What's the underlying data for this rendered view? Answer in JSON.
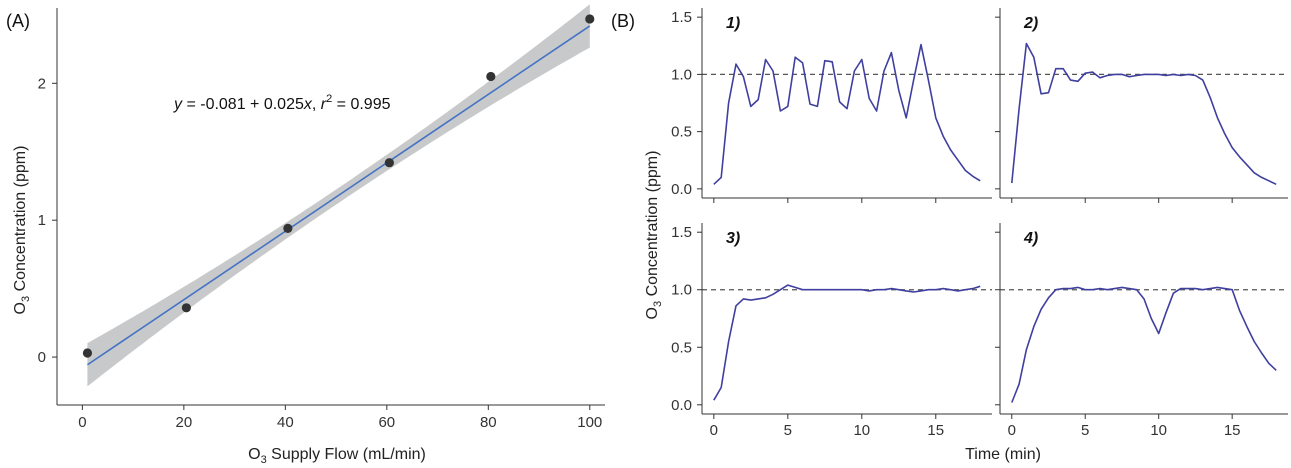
{
  "figure": {
    "panel_a_tag": "(A)",
    "panel_b_tag": "(B)"
  },
  "chart_data": [
    {
      "type": "scatter",
      "panel": "A",
      "xlabel": "O3 Supply Flow (mL/min)",
      "ylabel": "O3 Concentration (ppm)",
      "xlim": [
        -5,
        103
      ],
      "ylim": [
        -0.35,
        2.55
      ],
      "xticks": [
        0,
        20,
        40,
        60,
        80,
        100
      ],
      "yticks": [
        0,
        1,
        2
      ],
      "x": [
        1,
        20.5,
        40.5,
        60.5,
        80.5,
        100
      ],
      "y": [
        0.03,
        0.36,
        0.94,
        1.42,
        2.05,
        2.47
      ],
      "fit": {
        "intercept": -0.081,
        "slope": 0.025,
        "x_range": [
          1,
          100
        ],
        "annotation": {
          "y_var": "y",
          "eq_text": " = -0.081 + 0.025",
          "x_var": "x",
          "sep": ", ",
          "r_var": "r",
          "r_sup": "2",
          "r_text": " = 0.995"
        }
      },
      "colors": {
        "points": "#333333",
        "fit_line": "#4472c4",
        "confidence_band": "#c8c9cb"
      },
      "grid": false
    },
    {
      "type": "line",
      "panel": "B",
      "xlabel": "Time (min)",
      "ylabel": "O3 Concentration (ppm)",
      "xlim": [
        -0.8,
        18.8
      ],
      "ylim": [
        -0.08,
        1.58
      ],
      "xticks": [
        0,
        5,
        10,
        15
      ],
      "yticks": [
        0.0,
        0.5,
        1.0,
        1.5
      ],
      "reference_line": 1.0,
      "colors": {
        "line": "#3f3fa0",
        "reference": "#555555"
      },
      "grid": false,
      "facets": [
        {
          "label": "1)",
          "x": [
            0,
            0.5,
            1,
            1.5,
            2,
            2.5,
            3,
            3.5,
            4,
            4.5,
            5,
            5.5,
            6,
            6.5,
            7,
            7.5,
            8,
            8.5,
            9,
            9.5,
            10,
            10.5,
            11,
            11.5,
            12,
            12.5,
            13,
            13.5,
            14,
            14.5,
            15,
            15.5,
            16,
            16.5,
            17,
            17.5,
            18
          ],
          "y": [
            0.04,
            0.1,
            0.75,
            1.09,
            0.98,
            0.72,
            0.78,
            1.13,
            1.03,
            0.68,
            0.72,
            1.15,
            1.1,
            0.74,
            0.72,
            1.12,
            1.11,
            0.76,
            0.7,
            1.03,
            1.13,
            0.79,
            0.68,
            1.03,
            1.19,
            0.86,
            0.62,
            0.95,
            1.26,
            0.95,
            0.62,
            0.46,
            0.34,
            0.25,
            0.16,
            0.11,
            0.07
          ]
        },
        {
          "label": "2)",
          "x": [
            0,
            0.5,
            1,
            1.5,
            2,
            2.5,
            3,
            3.5,
            4,
            4.5,
            5,
            5.5,
            6,
            6.5,
            7,
            7.5,
            8,
            8.5,
            9,
            9.5,
            10,
            10.5,
            11,
            11.5,
            12,
            12.5,
            13,
            13.5,
            14,
            14.5,
            15,
            15.5,
            16,
            16.5,
            17,
            17.5,
            18
          ],
          "y": [
            0.05,
            0.7,
            1.27,
            1.15,
            0.83,
            0.84,
            1.05,
            1.05,
            0.95,
            0.94,
            1.01,
            1.02,
            0.97,
            0.99,
            1.0,
            1.0,
            0.98,
            0.99,
            1.0,
            1.0,
            1.0,
            0.99,
            1.0,
            0.99,
            1.0,
            0.99,
            0.95,
            0.8,
            0.62,
            0.48,
            0.36,
            0.28,
            0.21,
            0.14,
            0.1,
            0.07,
            0.04
          ]
        },
        {
          "label": "3)",
          "x": [
            0,
            0.5,
            1,
            1.5,
            2,
            2.5,
            3,
            3.5,
            4,
            4.5,
            5,
            5.5,
            6,
            6.5,
            7,
            7.5,
            8,
            8.5,
            9,
            9.5,
            10,
            10.5,
            11,
            11.5,
            12,
            12.5,
            13,
            13.5,
            14,
            14.5,
            15,
            15.5,
            16,
            16.5,
            17,
            17.5,
            18
          ],
          "y": [
            0.04,
            0.15,
            0.55,
            0.86,
            0.92,
            0.91,
            0.92,
            0.93,
            0.96,
            1.0,
            1.04,
            1.02,
            1.0,
            1.0,
            1.0,
            1.0,
            1.0,
            1.0,
            1.0,
            1.0,
            1.0,
            0.99,
            1.0,
            1.0,
            1.01,
            1.0,
            0.99,
            0.98,
            0.99,
            1.0,
            1.0,
            1.01,
            1.0,
            0.99,
            1.0,
            1.01,
            1.03
          ]
        },
        {
          "label": "4)",
          "x": [
            0,
            0.5,
            1,
            1.5,
            2,
            2.5,
            3,
            3.5,
            4,
            4.5,
            5,
            5.5,
            6,
            6.5,
            7,
            7.5,
            8,
            8.5,
            9,
            9.5,
            10,
            10.5,
            11,
            11.5,
            12,
            12.5,
            13,
            13.5,
            14,
            14.5,
            15,
            15.5,
            16,
            16.5,
            17,
            17.5,
            18
          ],
          "y": [
            0.02,
            0.18,
            0.48,
            0.68,
            0.83,
            0.93,
            1.0,
            1.01,
            1.01,
            1.02,
            1.0,
            1.0,
            1.01,
            1.0,
            1.01,
            1.02,
            1.01,
            1.0,
            0.92,
            0.75,
            0.62,
            0.8,
            0.97,
            1.01,
            1.01,
            1.01,
            1.0,
            1.01,
            1.02,
            1.01,
            1.0,
            0.82,
            0.68,
            0.55,
            0.45,
            0.36,
            0.3
          ]
        }
      ]
    }
  ]
}
